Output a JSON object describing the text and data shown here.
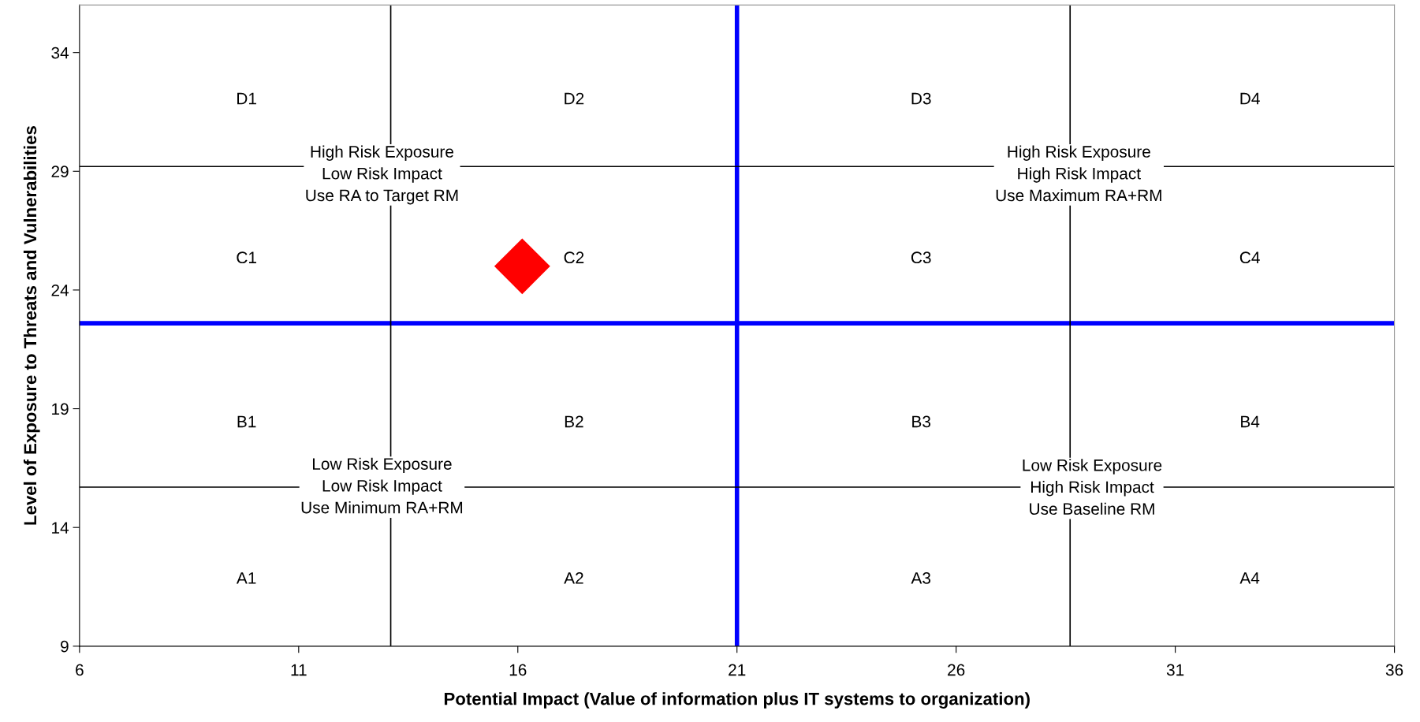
{
  "chart_data": {
    "type": "scatter",
    "xlabel": "Potential Impact (Value of information plus IT systems to organization)",
    "ylabel": "Level of Exposure to Threats and Vulnerabilities",
    "x": [
      16.1
    ],
    "series": [
      {
        "color": "#ff0000",
        "values": [
          25.0
        ]
      }
    ],
    "marker": "diamond",
    "xlim": [
      6,
      36
    ],
    "ylim": [
      9,
      36
    ],
    "xticks": [
      6,
      11,
      16,
      21,
      26,
      31,
      36
    ],
    "yticks": [
      9,
      14,
      19,
      24,
      29,
      34
    ],
    "grid": false,
    "legend": false,
    "ref_lines": [
      {
        "axis": "x",
        "value": 21,
        "color": "#0000ff"
      },
      {
        "axis": "y",
        "value": 22.6,
        "color": "#0000ff"
      },
      {
        "axis": "x",
        "value": 13.1,
        "color": "#000000"
      },
      {
        "axis": "x",
        "value": 28.6,
        "color": "#000000"
      },
      {
        "axis": "y",
        "value": 29.2,
        "color": "#000000"
      },
      {
        "axis": "y",
        "value": 15.7,
        "color": "#000000"
      }
    ],
    "annotations": [
      "D1",
      "D2",
      "D3",
      "D4",
      "C1",
      "C2",
      "C3",
      "C4",
      "B1",
      "B2",
      "B3",
      "B4",
      "A1",
      "A2",
      "A3",
      "A4",
      "High Risk Exposure\nLow Risk Impact\nUse RA to Target RM",
      "High Risk Exposure\nHigh Risk Impact\nUse Maximum RA+RM",
      "Low Risk Exposure\nLow Risk Impact\nUse Minimum RA+RM",
      "Low Risk Exposure\nHigh Risk Impact\nUse Baseline RM"
    ]
  }
}
